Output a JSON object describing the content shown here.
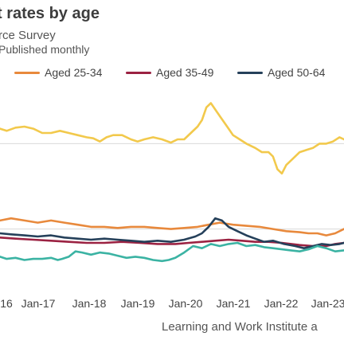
{
  "header": {
    "title": "t rates by age",
    "subtitle": "rce Survey",
    "subtitle2": "Published monthly"
  },
  "source": "Learning and Work Institute a",
  "chart_data": {
    "type": "line",
    "x_ticks": [
      "16",
      "Jan-17",
      "Jan-18",
      "Jan-19",
      "Jan-20",
      "Jan-21",
      "Jan-22",
      "Jan-23"
    ],
    "xlim": [
      2016.05,
      2023.8
    ],
    "ylim": [
      0,
      100
    ],
    "gridlines_y": [
      70,
      30
    ],
    "colors": {
      "young": "#F2C94C",
      "aged_25_34": "#E8893C",
      "aged_35_49": "#9B2242",
      "aged_50_64": "#25405A",
      "other": "#3BB3A3"
    },
    "series": [
      {
        "key": "young",
        "color": "#F2C94C",
        "points": [
          [
            2016.05,
            77
          ],
          [
            2016.2,
            76
          ],
          [
            2016.4,
            77.5
          ],
          [
            2016.6,
            78
          ],
          [
            2016.8,
            77
          ],
          [
            2017.0,
            75
          ],
          [
            2017.2,
            75
          ],
          [
            2017.4,
            76
          ],
          [
            2017.6,
            75
          ],
          [
            2017.8,
            74
          ],
          [
            2018.0,
            73
          ],
          [
            2018.15,
            72.5
          ],
          [
            2018.3,
            71
          ],
          [
            2018.45,
            73
          ],
          [
            2018.6,
            74
          ],
          [
            2018.8,
            74
          ],
          [
            2019.0,
            72
          ],
          [
            2019.15,
            71
          ],
          [
            2019.3,
            72
          ],
          [
            2019.5,
            73
          ],
          [
            2019.7,
            72
          ],
          [
            2019.9,
            70.5
          ],
          [
            2020.05,
            72
          ],
          [
            2020.2,
            72
          ],
          [
            2020.35,
            75
          ],
          [
            2020.5,
            78
          ],
          [
            2020.6,
            81
          ],
          [
            2020.7,
            87
          ],
          [
            2020.8,
            89
          ],
          [
            2020.9,
            86
          ],
          [
            2021.0,
            83
          ],
          [
            2021.1,
            80
          ],
          [
            2021.2,
            77
          ],
          [
            2021.3,
            74
          ],
          [
            2021.45,
            72
          ],
          [
            2021.6,
            70
          ],
          [
            2021.8,
            68
          ],
          [
            2021.95,
            66
          ],
          [
            2022.1,
            66
          ],
          [
            2022.2,
            64
          ],
          [
            2022.3,
            58
          ],
          [
            2022.4,
            56
          ],
          [
            2022.5,
            60
          ],
          [
            2022.65,
            63
          ],
          [
            2022.8,
            66
          ],
          [
            2022.95,
            67
          ],
          [
            2023.1,
            68
          ],
          [
            2023.25,
            70
          ],
          [
            2023.4,
            70
          ],
          [
            2023.55,
            71
          ],
          [
            2023.7,
            73
          ],
          [
            2023.8,
            72
          ]
        ]
      },
      {
        "key": "aged_25_34",
        "color": "#E8893C",
        "points": [
          [
            2016.05,
            34
          ],
          [
            2016.3,
            35
          ],
          [
            2016.6,
            34
          ],
          [
            2016.9,
            33
          ],
          [
            2017.2,
            34
          ],
          [
            2017.5,
            33
          ],
          [
            2017.8,
            32
          ],
          [
            2018.1,
            31
          ],
          [
            2018.4,
            31
          ],
          [
            2018.7,
            30.5
          ],
          [
            2019.0,
            31
          ],
          [
            2019.3,
            31
          ],
          [
            2019.6,
            30.5
          ],
          [
            2019.9,
            30
          ],
          [
            2020.2,
            30.5
          ],
          [
            2020.5,
            31
          ],
          [
            2020.75,
            32
          ],
          [
            2021.0,
            33
          ],
          [
            2021.3,
            32
          ],
          [
            2021.6,
            31.5
          ],
          [
            2021.9,
            31
          ],
          [
            2022.2,
            30
          ],
          [
            2022.5,
            29
          ],
          [
            2022.8,
            28.5
          ],
          [
            2023.0,
            28
          ],
          [
            2023.2,
            28
          ],
          [
            2023.4,
            27
          ],
          [
            2023.6,
            28
          ],
          [
            2023.8,
            30
          ]
        ]
      },
      {
        "key": "aged_35_49",
        "color": "#9B2242",
        "points": [
          [
            2016.05,
            26
          ],
          [
            2016.4,
            25.5
          ],
          [
            2016.8,
            25
          ],
          [
            2017.2,
            24.5
          ],
          [
            2017.6,
            24
          ],
          [
            2018.0,
            23.5
          ],
          [
            2018.4,
            23.5
          ],
          [
            2018.8,
            24
          ],
          [
            2019.2,
            23.5
          ],
          [
            2019.6,
            23
          ],
          [
            2020.0,
            23
          ],
          [
            2020.3,
            23.5
          ],
          [
            2020.6,
            24
          ],
          [
            2020.9,
            24.5
          ],
          [
            2021.2,
            25
          ],
          [
            2021.5,
            24.5
          ],
          [
            2021.8,
            24
          ],
          [
            2022.1,
            24
          ],
          [
            2022.4,
            23.5
          ],
          [
            2022.8,
            22.5
          ],
          [
            2023.1,
            22
          ],
          [
            2023.4,
            22
          ],
          [
            2023.6,
            23
          ],
          [
            2023.8,
            23.5
          ]
        ]
      },
      {
        "key": "aged_50_64",
        "color": "#25405A",
        "points": [
          [
            2016.05,
            28
          ],
          [
            2016.3,
            27.5
          ],
          [
            2016.6,
            27
          ],
          [
            2016.9,
            26.5
          ],
          [
            2017.2,
            27
          ],
          [
            2017.5,
            26
          ],
          [
            2017.8,
            25.5
          ],
          [
            2018.1,
            25
          ],
          [
            2018.4,
            25.5
          ],
          [
            2018.7,
            25
          ],
          [
            2019.0,
            24.5
          ],
          [
            2019.3,
            24
          ],
          [
            2019.6,
            24.5
          ],
          [
            2019.9,
            24
          ],
          [
            2020.2,
            25
          ],
          [
            2020.45,
            26.5
          ],
          [
            2020.6,
            28
          ],
          [
            2020.75,
            31
          ],
          [
            2020.9,
            35
          ],
          [
            2021.05,
            34
          ],
          [
            2021.2,
            31
          ],
          [
            2021.4,
            29
          ],
          [
            2021.6,
            27
          ],
          [
            2021.8,
            25.5
          ],
          [
            2022.0,
            24
          ],
          [
            2022.2,
            24.5
          ],
          [
            2022.45,
            23
          ],
          [
            2022.7,
            22
          ],
          [
            2022.9,
            21
          ],
          [
            2023.1,
            22
          ],
          [
            2023.3,
            23
          ],
          [
            2023.5,
            22.5
          ],
          [
            2023.7,
            23
          ],
          [
            2023.8,
            23.5
          ]
        ]
      },
      {
        "key": "other",
        "color": "#3BB3A3",
        "points": [
          [
            2016.05,
            17
          ],
          [
            2016.2,
            16
          ],
          [
            2016.4,
            16.5
          ],
          [
            2016.6,
            15.5
          ],
          [
            2016.8,
            16
          ],
          [
            2017.0,
            16
          ],
          [
            2017.2,
            16.5
          ],
          [
            2017.35,
            15.5
          ],
          [
            2017.45,
            16
          ],
          [
            2017.6,
            17
          ],
          [
            2017.75,
            19.5
          ],
          [
            2017.9,
            19
          ],
          [
            2018.1,
            18
          ],
          [
            2018.3,
            19
          ],
          [
            2018.5,
            18.5
          ],
          [
            2018.7,
            17.5
          ],
          [
            2018.9,
            16.5
          ],
          [
            2019.1,
            17
          ],
          [
            2019.3,
            16.5
          ],
          [
            2019.5,
            15.5
          ],
          [
            2019.7,
            15
          ],
          [
            2019.85,
            15.5
          ],
          [
            2020.0,
            16.5
          ],
          [
            2020.2,
            19
          ],
          [
            2020.4,
            22
          ],
          [
            2020.6,
            21
          ],
          [
            2020.8,
            23
          ],
          [
            2021.0,
            22
          ],
          [
            2021.2,
            23
          ],
          [
            2021.4,
            23.5
          ],
          [
            2021.6,
            22
          ],
          [
            2021.8,
            22.5
          ],
          [
            2022.0,
            21.5
          ],
          [
            2022.2,
            21
          ],
          [
            2022.4,
            20.5
          ],
          [
            2022.6,
            20
          ],
          [
            2022.8,
            19.5
          ],
          [
            2023.0,
            20.5
          ],
          [
            2023.2,
            22
          ],
          [
            2023.4,
            21
          ],
          [
            2023.6,
            19.5
          ],
          [
            2023.8,
            20
          ]
        ]
      }
    ]
  },
  "legend": [
    {
      "label": "Aged 25-34",
      "color": "#E8893C"
    },
    {
      "label": "Aged 35-49",
      "color": "#9B2242"
    },
    {
      "label": "Aged 50-64",
      "color": "#25405A"
    }
  ]
}
